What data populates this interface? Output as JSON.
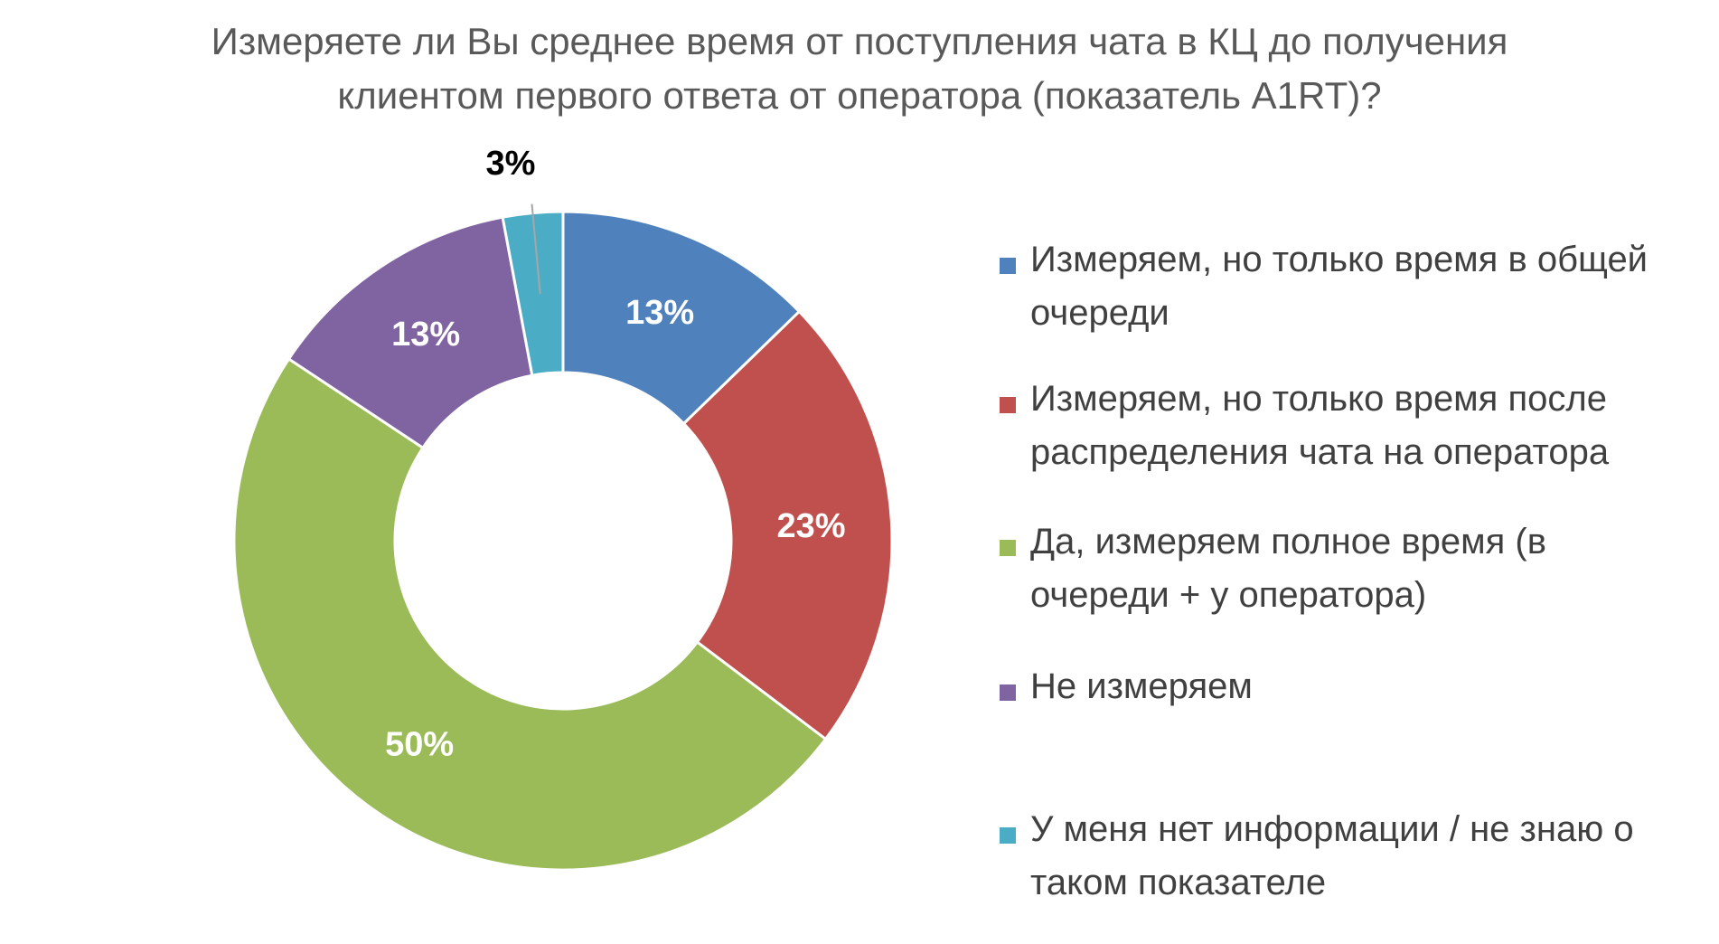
{
  "chart_data": {
    "type": "pie",
    "donut": true,
    "title_lines": [
      "Измеряете ли Вы среднее время от поступления чата в КЦ до получения",
      "клиентом первого ответа от оператора (показатель A1RT)?"
    ],
    "categories": [
      "Измеряем, но только время в общей очереди",
      "Измеряем, но только время после распределения чата на оператора",
      "Да, измеряем полное время (в очереди + у оператора)",
      "Не измеряем",
      "У меня нет информации / не знаю о таком показателе"
    ],
    "values": [
      13,
      23,
      50,
      13,
      3
    ],
    "data_labels": [
      "13%",
      "23%",
      "50%",
      "13%",
      "3%"
    ],
    "colors": [
      "#4F81BD",
      "#C0504D",
      "#9BBB59",
      "#8064A2",
      "#4BACC6"
    ],
    "legend_position": "right"
  },
  "legend": {
    "items": [
      {
        "line1": "Измеряем, но только время в общей",
        "line2": "очереди"
      },
      {
        "line1": "Измеряем, но только время после",
        "line2": "распределения чата на оператора"
      },
      {
        "line1": "Да, измеряем полное время (в",
        "line2": "очереди + у оператора)"
      },
      {
        "line1": "Не измеряем",
        "line2": ""
      },
      {
        "line1": "У меня нет информации / не знаю о",
        "line2": "таком показателе"
      }
    ]
  }
}
